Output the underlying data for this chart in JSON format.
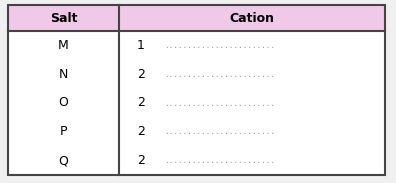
{
  "col_headers": [
    "Salt",
    "Cation"
  ],
  "rows": [
    [
      "M",
      "1"
    ],
    [
      "N",
      "2"
    ],
    [
      "O",
      "2"
    ],
    [
      "P",
      "2"
    ],
    [
      "Q",
      "2"
    ]
  ],
  "dots": "........................",
  "header_bg": "#f0c8e8",
  "header_text_color": "#000000",
  "cell_bg": "#ffffff",
  "fig_bg": "#f0f0f0",
  "border_color": "#444444",
  "font_size_header": 9,
  "font_size_cell": 9,
  "font_size_dots": 5.5
}
